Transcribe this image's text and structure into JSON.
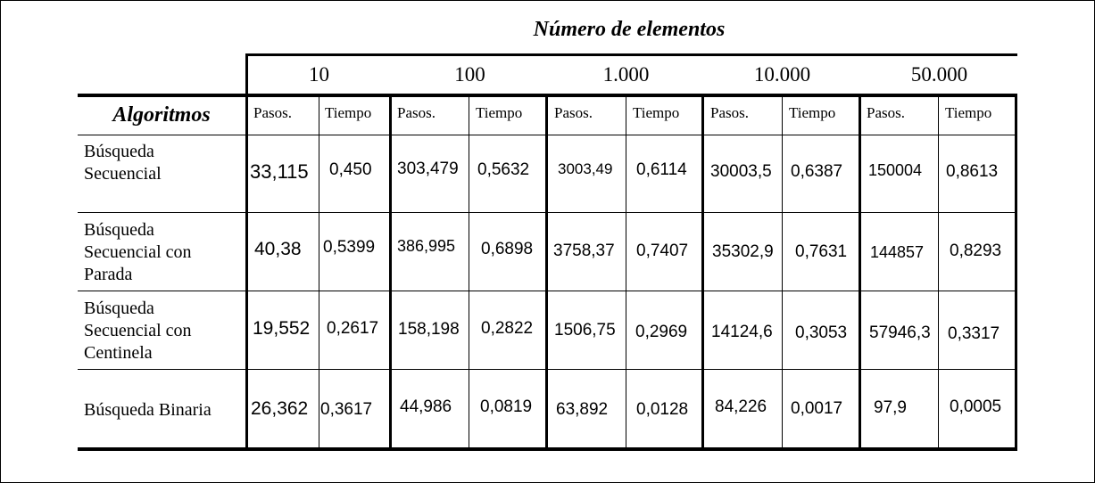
{
  "table": {
    "title": "Número de elementos",
    "algorithms_header": "Algoritmos",
    "counts": [
      "10",
      "100",
      "1.000",
      "10.000",
      "50.000"
    ],
    "sub_headers": {
      "steps": "Pasos.",
      "time": "Tiempo"
    },
    "rows": [
      {
        "name_lines": [
          "Búsqueda",
          "Secuencial"
        ],
        "values": [
          {
            "steps": "33,115",
            "time": "0,450"
          },
          {
            "steps": "303,479",
            "time": "0,5632"
          },
          {
            "steps": "3003,49",
            "time": "0,6114"
          },
          {
            "steps": "30003,5",
            "time": "0,6387"
          },
          {
            "steps": "150004",
            "time": "0,8613"
          }
        ]
      },
      {
        "name_lines": [
          "Búsqueda",
          "Secuencial con",
          "Parada"
        ],
        "values": [
          {
            "steps": "40,38",
            "time": "0,5399"
          },
          {
            "steps": "386,995",
            "time": "0,6898"
          },
          {
            "steps": "3758,37",
            "time": "0,7407"
          },
          {
            "steps": "35302,9",
            "time": "0,7631"
          },
          {
            "steps": "144857",
            "time": "0,8293"
          }
        ]
      },
      {
        "name_lines": [
          "Búsqueda",
          "Secuencial con",
          "Centinela"
        ],
        "values": [
          {
            "steps": "19,552",
            "time": "0,2617"
          },
          {
            "steps": "158,198",
            "time": "0,2822"
          },
          {
            "steps": "1506,75",
            "time": "0,2969"
          },
          {
            "steps": "14124,6",
            "time": "0,3053"
          },
          {
            "steps": "57946,3",
            "time": "0,3317"
          }
        ]
      },
      {
        "name_lines": [
          "Búsqueda Binaria"
        ],
        "values": [
          {
            "steps": "26,362",
            "time": "0,3617"
          },
          {
            "steps": "44,986",
            "time": "0,0819"
          },
          {
            "steps": "63,892",
            "time": "0,0128"
          },
          {
            "steps": "84,226",
            "time": "0,0017"
          },
          {
            "steps": "97,9",
            "time": "0,0005"
          }
        ]
      }
    ]
  }
}
